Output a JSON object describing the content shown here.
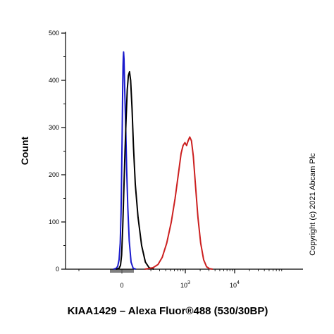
{
  "chart_data": {
    "type": "line",
    "xlabel": "KIAA1429 – Alexa Fluor®488 (530/30BP)",
    "ylabel": "Count",
    "ylim": [
      0,
      500
    ],
    "yticks": [
      "0",
      "100",
      "200",
      "300",
      "400",
      "500"
    ],
    "xticks": [
      {
        "label": "0",
        "value": 0
      },
      {
        "label": "3",
        "base": "10",
        "value": 1000
      },
      {
        "label": "4",
        "base": "10",
        "value": 10000
      }
    ],
    "x_scale": "biexponential",
    "grid": false,
    "series": [
      {
        "color": "#1a1acc",
        "points": [
          [
            -60,
            0
          ],
          [
            -40,
            2
          ],
          [
            -30,
            6
          ],
          [
            -20,
            20
          ],
          [
            -12,
            55
          ],
          [
            -6,
            120
          ],
          [
            -2,
            200
          ],
          [
            2,
            290
          ],
          [
            5,
            370
          ],
          [
            8,
            430
          ],
          [
            10,
            450
          ],
          [
            12,
            460
          ],
          [
            15,
            445
          ],
          [
            20,
            380
          ],
          [
            27,
            300
          ],
          [
            34,
            210
          ],
          [
            42,
            130
          ],
          [
            52,
            60
          ],
          [
            65,
            15
          ],
          [
            80,
            2
          ],
          [
            100,
            0
          ]
        ]
      },
      {
        "color": "#000000",
        "points": [
          [
            -40,
            0
          ],
          [
            -20,
            2
          ],
          [
            -10,
            8
          ],
          [
            -2,
            30
          ],
          [
            6,
            90
          ],
          [
            14,
            170
          ],
          [
            22,
            250
          ],
          [
            30,
            320
          ],
          [
            38,
            380
          ],
          [
            46,
            410
          ],
          [
            54,
            418
          ],
          [
            62,
            400
          ],
          [
            72,
            340
          ],
          [
            82,
            260
          ],
          [
            95,
            180
          ],
          [
            110,
            110
          ],
          [
            130,
            50
          ],
          [
            155,
            15
          ],
          [
            185,
            3
          ],
          [
            230,
            0
          ]
        ]
      },
      {
        "color": "#cc2020",
        "points": [
          [
            150,
            0
          ],
          [
            220,
            3
          ],
          [
            280,
            10
          ],
          [
            340,
            25
          ],
          [
            420,
            55
          ],
          [
            520,
            100
          ],
          [
            620,
            150
          ],
          [
            720,
            200
          ],
          [
            820,
            245
          ],
          [
            900,
            262
          ],
          [
            980,
            268
          ],
          [
            1060,
            262
          ],
          [
            1140,
            272
          ],
          [
            1230,
            280
          ],
          [
            1330,
            272
          ],
          [
            1450,
            240
          ],
          [
            1600,
            180
          ],
          [
            1800,
            110
          ],
          [
            2050,
            55
          ],
          [
            2350,
            20
          ],
          [
            2700,
            5
          ],
          [
            3100,
            1
          ],
          [
            3600,
            0
          ]
        ]
      }
    ]
  },
  "copyright": "Copyright (c) 2021 Abcam Plc"
}
